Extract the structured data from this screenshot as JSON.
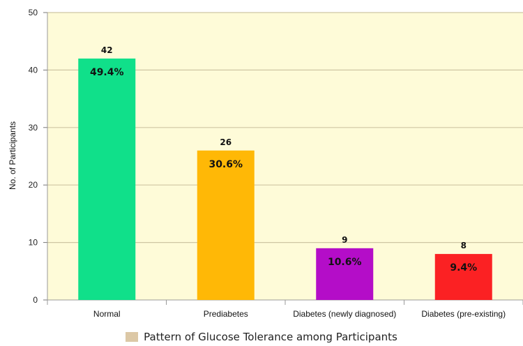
{
  "chart_data": {
    "type": "bar",
    "categories": [
      "Normal",
      "Prediabetes",
      "Diabetes (newly diagnosed)",
      "Diabetes (pre-existing)"
    ],
    "values": [
      42,
      26,
      9,
      8
    ],
    "percent_labels": [
      "49.4%",
      "30.6%",
      "10.6%",
      "9.4%"
    ],
    "bar_colors": [
      "#10e08a",
      "#ffb806",
      "#b40dc8",
      "#fb2123"
    ],
    "plot_background": "#fefbd8",
    "gridline_color": "#cfc6a3",
    "ylabel": "No. of Participants",
    "xlabel": "",
    "ylim": [
      0,
      50
    ],
    "yticks": [
      0,
      10,
      20,
      30,
      40,
      50
    ],
    "grid": true,
    "legend": {
      "placement": "bottom",
      "label": "Pattern of Glucose Tolerance among Participants",
      "color": "#dcc8a6"
    }
  }
}
